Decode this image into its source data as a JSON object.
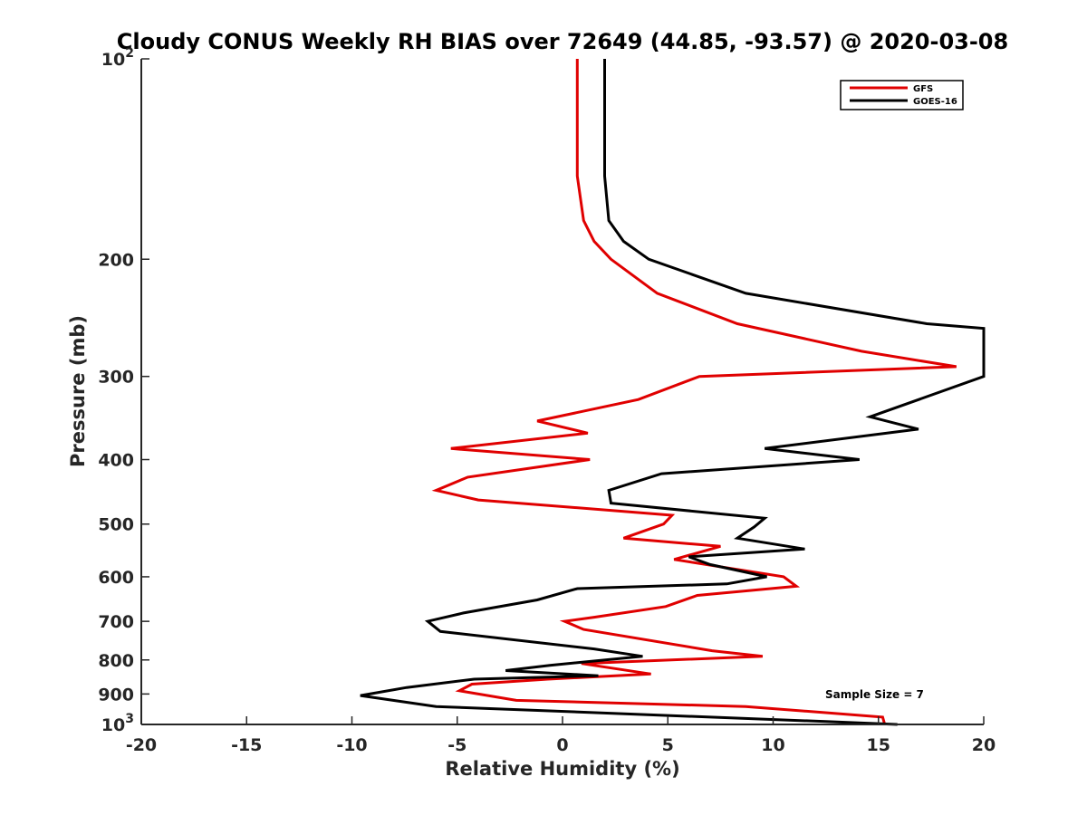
{
  "chart_data": {
    "type": "line",
    "title": "Cloudy CONUS Weekly RH BIAS over 72649 (44.85, -93.57) @ 2020-03-08",
    "xlabel": "Relative Humidity (%)",
    "ylabel": "Pressure (mb)",
    "xlim": [
      -20,
      20
    ],
    "ylim": [
      100,
      1000
    ],
    "yscale": "log",
    "y_reversed": true,
    "x_ticks": [
      "-20",
      "-15",
      "-10",
      "-5",
      "0",
      "5",
      "10",
      "15",
      "20"
    ],
    "y_ticks": [
      {
        "value": 100,
        "base": "10",
        "exp": "2"
      },
      {
        "value": 200,
        "label": "200"
      },
      {
        "value": 300,
        "label": "300"
      },
      {
        "value": 400,
        "label": "400"
      },
      {
        "value": 500,
        "label": "500"
      },
      {
        "value": 600,
        "label": "600"
      },
      {
        "value": 700,
        "label": "700"
      },
      {
        "value": 800,
        "label": "800"
      },
      {
        "value": 900,
        "label": "900"
      },
      {
        "value": 1000,
        "base": "10",
        "exp": "3"
      }
    ],
    "legend_position": "top-right",
    "annotation": "Sample Size = 7",
    "series": [
      {
        "name": "GFS",
        "color": "#e00000",
        "points": [
          [
            0.7,
            100
          ],
          [
            0.7,
            150
          ],
          [
            1.0,
            175
          ],
          [
            1.5,
            188
          ],
          [
            2.3,
            200
          ],
          [
            4.5,
            225
          ],
          [
            8.3,
            250
          ],
          [
            14.2,
            275
          ],
          [
            18.7,
            290
          ],
          [
            6.5,
            300
          ],
          [
            3.6,
            325
          ],
          [
            -1.2,
            350
          ],
          [
            1.2,
            365
          ],
          [
            -5.3,
            385
          ],
          [
            1.3,
            400
          ],
          [
            -4.5,
            425
          ],
          [
            -6.0,
            445
          ],
          [
            -4.0,
            460
          ],
          [
            5.2,
            485
          ],
          [
            4.8,
            500
          ],
          [
            2.9,
            525
          ],
          [
            7.5,
            540
          ],
          [
            5.3,
            565
          ],
          [
            10.5,
            600
          ],
          [
            11.1,
            620
          ],
          [
            6.4,
            640
          ],
          [
            4.9,
            665
          ],
          [
            1.5,
            690
          ],
          [
            0.1,
            700
          ],
          [
            1.0,
            720
          ],
          [
            7.1,
            775
          ],
          [
            9.5,
            790
          ],
          [
            0.9,
            810
          ],
          [
            4.2,
            840
          ],
          [
            -0.7,
            855
          ],
          [
            -4.3,
            870
          ],
          [
            -4.9,
            890
          ],
          [
            -2.2,
            920
          ],
          [
            8.7,
            940
          ],
          [
            15.2,
            975
          ],
          [
            15.3,
            1000
          ]
        ]
      },
      {
        "name": "GOES-16",
        "color": "#000000",
        "points": [
          [
            2.0,
            100
          ],
          [
            2.0,
            150
          ],
          [
            2.2,
            175
          ],
          [
            2.9,
            188
          ],
          [
            4.1,
            200
          ],
          [
            8.7,
            225
          ],
          [
            17.3,
            250
          ],
          [
            20.0,
            254
          ],
          [
            20.0,
            290
          ],
          [
            20.0,
            300
          ],
          [
            14.6,
            345
          ],
          [
            16.9,
            360
          ],
          [
            9.6,
            385
          ],
          [
            14.1,
            400
          ],
          [
            4.7,
            420
          ],
          [
            2.2,
            445
          ],
          [
            2.3,
            465
          ],
          [
            9.6,
            490
          ],
          [
            9.1,
            505
          ],
          [
            8.3,
            525
          ],
          [
            11.5,
            545
          ],
          [
            6.0,
            560
          ],
          [
            7.0,
            575
          ],
          [
            9.7,
            600
          ],
          [
            7.8,
            615
          ],
          [
            0.7,
            625
          ],
          [
            -1.2,
            650
          ],
          [
            -4.7,
            680
          ],
          [
            -6.4,
            700
          ],
          [
            -5.8,
            725
          ],
          [
            1.5,
            770
          ],
          [
            3.8,
            790
          ],
          [
            -0.6,
            815
          ],
          [
            -2.7,
            830
          ],
          [
            1.7,
            845
          ],
          [
            -4.2,
            855
          ],
          [
            -7.4,
            880
          ],
          [
            -9.6,
            905
          ],
          [
            -6.0,
            940
          ],
          [
            12.5,
            990
          ],
          [
            15.9,
            1000
          ]
        ]
      }
    ]
  }
}
